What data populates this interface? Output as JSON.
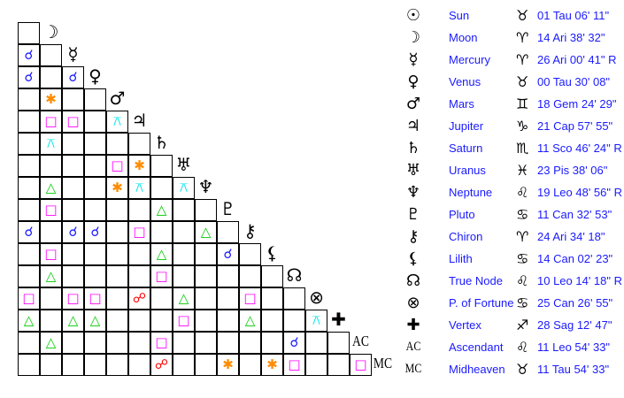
{
  "planets": [
    {
      "name": "Sun",
      "symbol": "☉",
      "sign_symbol": "♉",
      "position": "01 Tau 06' 11\""
    },
    {
      "name": "Moon",
      "symbol": "☽",
      "sign_symbol": "♈",
      "position": "14 Ari 38' 32\""
    },
    {
      "name": "Mercury",
      "symbol": "☿",
      "sign_symbol": "♈",
      "position": "26 Ari 00' 41\" R"
    },
    {
      "name": "Venus",
      "symbol": "♀",
      "sign_symbol": "♉",
      "position": "00 Tau 30' 08\""
    },
    {
      "name": "Mars",
      "symbol": "♂",
      "sign_symbol": "♊",
      "position": "18 Gem 24' 29\""
    },
    {
      "name": "Jupiter",
      "symbol": "♃",
      "sign_symbol": "♑",
      "position": "21 Cap 57' 55\""
    },
    {
      "name": "Saturn",
      "symbol": "♄",
      "sign_symbol": "♏",
      "position": "11 Sco 46' 24\" R"
    },
    {
      "name": "Uranus",
      "symbol": "♅",
      "sign_symbol": "♓",
      "position": "23 Pis 38' 06\""
    },
    {
      "name": "Neptune",
      "symbol": "♆",
      "sign_symbol": "♌",
      "position": "19 Leo 48' 56\" R"
    },
    {
      "name": "Pluto",
      "symbol": "♇",
      "sign_symbol": "♋",
      "position": "11 Can 32' 53\""
    },
    {
      "name": "Chiron",
      "symbol": "⚷",
      "sign_symbol": "♈",
      "position": "24 Ari 34' 18\""
    },
    {
      "name": "Lilith",
      "symbol": "⚸",
      "sign_symbol": "♋",
      "position": "14 Can 02' 23\""
    },
    {
      "name": "True Node",
      "symbol": "☊",
      "sign_symbol": "♌",
      "position": "10 Leo 14' 18\" R"
    },
    {
      "name": "P. of Fortune",
      "symbol": "⊗",
      "sign_symbol": "♋",
      "position": "25 Can 26' 55\""
    },
    {
      "name": "Vertex",
      "symbol": "✚",
      "sign_symbol": "♐",
      "position": "28 Sag 12' 47\""
    },
    {
      "name": "Ascendant",
      "symbol": "AC",
      "sign_symbol": "♌",
      "position": "11 Leo 54' 33\""
    },
    {
      "name": "Midheaven",
      "symbol": "MC",
      "sign_symbol": "♉",
      "position": "11 Tau 54' 33\""
    }
  ],
  "aspect_styles": {
    "conjunction": {
      "glyph": "☌",
      "color": "#1a1aff"
    },
    "opposition": {
      "glyph": "☍",
      "color": "#ff0000"
    },
    "square": {
      "glyph": "□",
      "color": "#ff00ff"
    },
    "trine": {
      "glyph": "△",
      "color": "#00cc00"
    },
    "sextile": {
      "glyph": "✱",
      "color": "#ff8c00"
    },
    "quincunx": {
      "glyph": "⚻",
      "color": "#00e5ee"
    }
  },
  "aspects": [
    [
      "Mercury",
      "Sun",
      "conjunction"
    ],
    [
      "Venus",
      "Sun",
      "conjunction"
    ],
    [
      "Venus",
      "Mercury",
      "conjunction"
    ],
    [
      "Mars",
      "Moon",
      "sextile"
    ],
    [
      "Jupiter",
      "Moon",
      "square"
    ],
    [
      "Jupiter",
      "Mercury",
      "square"
    ],
    [
      "Jupiter",
      "Mars",
      "quincunx"
    ],
    [
      "Saturn",
      "Moon",
      "quincunx"
    ],
    [
      "Uranus",
      "Mars",
      "square"
    ],
    [
      "Uranus",
      "Jupiter",
      "sextile"
    ],
    [
      "Neptune",
      "Moon",
      "trine"
    ],
    [
      "Neptune",
      "Mars",
      "sextile"
    ],
    [
      "Neptune",
      "Jupiter",
      "quincunx"
    ],
    [
      "Neptune",
      "Uranus",
      "quincunx"
    ],
    [
      "Pluto",
      "Moon",
      "square"
    ],
    [
      "Pluto",
      "Saturn",
      "trine"
    ],
    [
      "Chiron",
      "Sun",
      "conjunction"
    ],
    [
      "Chiron",
      "Mercury",
      "conjunction"
    ],
    [
      "Chiron",
      "Venus",
      "conjunction"
    ],
    [
      "Chiron",
      "Jupiter",
      "square"
    ],
    [
      "Chiron",
      "Neptune",
      "trine"
    ],
    [
      "Lilith",
      "Moon",
      "square"
    ],
    [
      "Lilith",
      "Saturn",
      "trine"
    ],
    [
      "Lilith",
      "Pluto",
      "conjunction"
    ],
    [
      "True Node",
      "Moon",
      "trine"
    ],
    [
      "True Node",
      "Saturn",
      "square"
    ],
    [
      "P. of Fortune",
      "Sun",
      "square"
    ],
    [
      "P. of Fortune",
      "Mercury",
      "square"
    ],
    [
      "P. of Fortune",
      "Venus",
      "square"
    ],
    [
      "P. of Fortune",
      "Jupiter",
      "opposition"
    ],
    [
      "P. of Fortune",
      "Uranus",
      "trine"
    ],
    [
      "P. of Fortune",
      "Chiron",
      "square"
    ],
    [
      "Vertex",
      "Sun",
      "trine"
    ],
    [
      "Vertex",
      "Mercury",
      "trine"
    ],
    [
      "Vertex",
      "Venus",
      "trine"
    ],
    [
      "Vertex",
      "Uranus",
      "square"
    ],
    [
      "Vertex",
      "Chiron",
      "trine"
    ],
    [
      "Vertex",
      "P. of Fortune",
      "quincunx"
    ],
    [
      "Ascendant",
      "Moon",
      "trine"
    ],
    [
      "Ascendant",
      "Saturn",
      "square"
    ],
    [
      "Ascendant",
      "True Node",
      "conjunction"
    ],
    [
      "Midheaven",
      "Saturn",
      "opposition"
    ],
    [
      "Midheaven",
      "Pluto",
      "sextile"
    ],
    [
      "Midheaven",
      "Lilith",
      "sextile"
    ],
    [
      "Midheaven",
      "True Node",
      "square"
    ],
    [
      "Midheaven",
      "Ascendant",
      "square"
    ]
  ]
}
